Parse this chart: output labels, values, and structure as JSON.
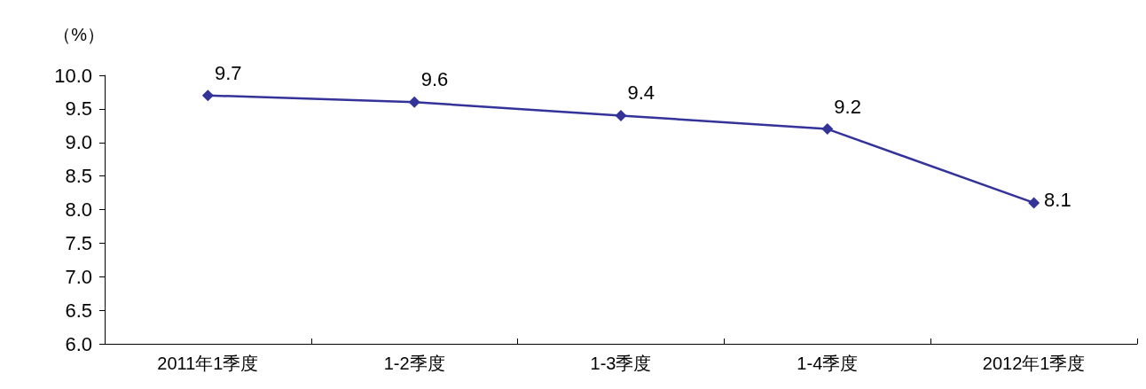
{
  "chart_data": {
    "type": "line",
    "ylabel": "（%）",
    "categories": [
      "2011年1季度",
      "1-2季度",
      "1-3季度",
      "1-4季度",
      "2012年1季度"
    ],
    "series": [
      {
        "color": "#333399",
        "values": [
          9.7,
          9.6,
          9.4,
          9.2,
          8.1
        ]
      }
    ],
    "ylim": [
      6,
      10
    ],
    "yticks": [
      {
        "value": 6,
        "label": "6.0"
      },
      6.5,
      {
        "value": 7,
        "label": "7.0"
      },
      7.5,
      {
        "value": 8,
        "label": "8.0"
      },
      8.5,
      {
        "value": 9,
        "label": "9.0"
      },
      9.5,
      {
        "value": 10,
        "label": "10.0"
      }
    ],
    "data_labels": true,
    "marker": "diamond"
  }
}
